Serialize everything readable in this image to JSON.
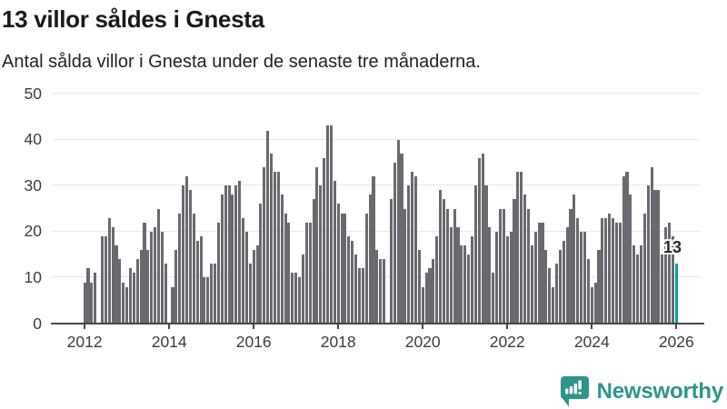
{
  "chart_data": {
    "type": "bar",
    "title": "13 villor såldes i Gnesta",
    "subtitle": "Antal sålda villor i Gnesta under de senaste tre månaderna.",
    "x_start": "2012-01",
    "x_end": "2026-01",
    "frequency": "monthly",
    "values": [
      9,
      12,
      9,
      11,
      0,
      19,
      19,
      23,
      21,
      17,
      14,
      9,
      8,
      12,
      11,
      14,
      16,
      22,
      16,
      20,
      21,
      25,
      20,
      13,
      0,
      8,
      16,
      24,
      30,
      32,
      29,
      24,
      18,
      19,
      10,
      10,
      13,
      13,
      22,
      28,
      30,
      30,
      28,
      30,
      31,
      23,
      20,
      13,
      16,
      17,
      26,
      34,
      42,
      37,
      33,
      33,
      28,
      24,
      22,
      11,
      11,
      10,
      15,
      22,
      22,
      27,
      34,
      30,
      36,
      43,
      43,
      31,
      26,
      24,
      24,
      19,
      18,
      15,
      12,
      12,
      24,
      28,
      32,
      16,
      14,
      14,
      0,
      27,
      35,
      40,
      37,
      25,
      30,
      33,
      32,
      16,
      8,
      11,
      12,
      14,
      19,
      29,
      27,
      25,
      21,
      25,
      21,
      17,
      17,
      15,
      19,
      30,
      36,
      37,
      30,
      21,
      11,
      20,
      25,
      25,
      19,
      20,
      27,
      33,
      33,
      28,
      25,
      17,
      20,
      22,
      22,
      16,
      12,
      8,
      13,
      16,
      18,
      21,
      25,
      28,
      23,
      20,
      20,
      14,
      8,
      9,
      16,
      23,
      23,
      24,
      23,
      22,
      22,
      32,
      33,
      28,
      17,
      15,
      17,
      24,
      30,
      34,
      29,
      29,
      15,
      21,
      22,
      19,
      13
    ],
    "highlight_index": 168,
    "highlight_value": 13,
    "annotation": {
      "text": "13"
    },
    "bar_color": "#696970",
    "highlight_color": "#00a3a0",
    "y_ticks": [
      0,
      10,
      20,
      30,
      40,
      50
    ],
    "ylim": [
      0,
      50
    ],
    "x_tick_labels": [
      "2012",
      "2014",
      "2016",
      "2018",
      "2020",
      "2022",
      "2024",
      "2026"
    ],
    "grid": true,
    "legend": "none"
  },
  "footer": {
    "brand": "Newsworthy",
    "logo_icon": "bar-chart-speech-bubble-icon",
    "brand_color": "#2f948c"
  }
}
